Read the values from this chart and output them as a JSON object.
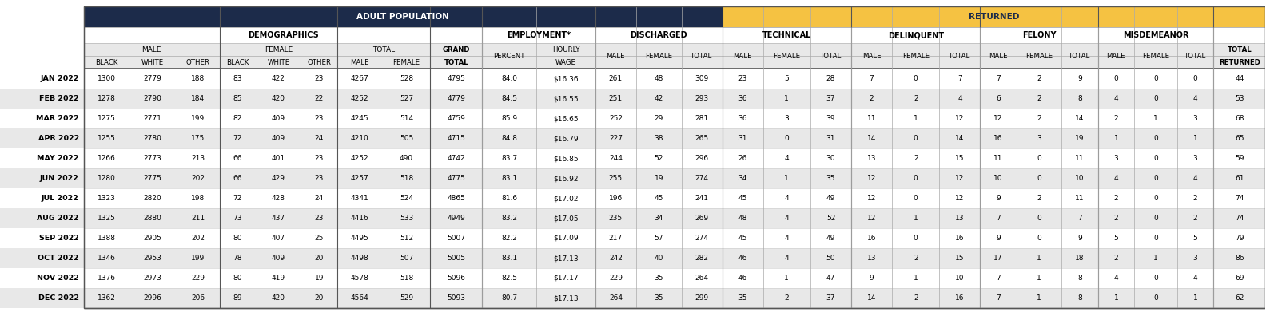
{
  "months": [
    "JAN 2022",
    "FEB 2022",
    "MAR 2022",
    "APR 2022",
    "MAY 2022",
    "JUN 2022",
    "JUL 2022",
    "AUG 2022",
    "SEP 2022",
    "OCT 2022",
    "NOV 2022",
    "DEC 2022"
  ],
  "male_black": [
    1300,
    1278,
    1275,
    1255,
    1266,
    1280,
    1323,
    1325,
    1388,
    1346,
    1376,
    1362
  ],
  "male_white": [
    2779,
    2790,
    2771,
    2780,
    2773,
    2775,
    2820,
    2880,
    2905,
    2953,
    2973,
    2996
  ],
  "male_other": [
    188,
    184,
    199,
    175,
    213,
    202,
    198,
    211,
    202,
    199,
    229,
    206
  ],
  "female_black": [
    83,
    85,
    82,
    72,
    66,
    66,
    72,
    73,
    80,
    78,
    80,
    89
  ],
  "female_white": [
    422,
    420,
    409,
    409,
    401,
    429,
    428,
    437,
    407,
    409,
    419,
    420
  ],
  "female_other": [
    23,
    22,
    23,
    24,
    23,
    23,
    24,
    23,
    25,
    20,
    19,
    20
  ],
  "total_male": [
    4267,
    4252,
    4245,
    4210,
    4252,
    4257,
    4341,
    4416,
    4495,
    4498,
    4578,
    4564
  ],
  "total_female": [
    528,
    527,
    514,
    505,
    490,
    518,
    524,
    533,
    512,
    507,
    518,
    529
  ],
  "grand_total": [
    4795,
    4779,
    4759,
    4715,
    4742,
    4775,
    4865,
    4949,
    5007,
    5005,
    5096,
    5093
  ],
  "employ_pct": [
    "84.0",
    "84.5",
    "85.9",
    "84.8",
    "83.7",
    "83.1",
    "81.6",
    "83.2",
    "82.2",
    "83.1",
    "82.5",
    "80.7"
  ],
  "hourly_wage": [
    "$16.36",
    "$16.55",
    "$16.65",
    "$16.79",
    "$16.85",
    "$16.92",
    "$17.02",
    "$17.05",
    "$17.09",
    "$17.13",
    "$17.17",
    "$17.13"
  ],
  "disc_male": [
    261,
    251,
    252,
    227,
    244,
    255,
    196,
    235,
    217,
    242,
    229,
    264
  ],
  "disc_female": [
    48,
    42,
    29,
    38,
    52,
    19,
    45,
    34,
    57,
    40,
    35,
    35
  ],
  "disc_total": [
    309,
    293,
    281,
    265,
    296,
    274,
    241,
    269,
    274,
    282,
    264,
    299
  ],
  "tech_male": [
    23,
    36,
    36,
    31,
    26,
    34,
    45,
    48,
    45,
    46,
    46,
    35
  ],
  "tech_female": [
    5,
    1,
    3,
    0,
    4,
    1,
    4,
    4,
    4,
    4,
    1,
    2
  ],
  "tech_total": [
    28,
    37,
    39,
    31,
    30,
    35,
    49,
    52,
    49,
    50,
    47,
    37
  ],
  "delinq_male": [
    7,
    2,
    11,
    14,
    13,
    12,
    12,
    12,
    16,
    13,
    9,
    14
  ],
  "delinq_female": [
    0,
    2,
    1,
    0,
    2,
    0,
    0,
    1,
    0,
    2,
    1,
    2
  ],
  "delinq_total": [
    7,
    4,
    12,
    14,
    15,
    12,
    12,
    13,
    16,
    15,
    10,
    16
  ],
  "felony_male": [
    7,
    6,
    12,
    16,
    11,
    10,
    9,
    7,
    9,
    17,
    7,
    7
  ],
  "felony_female": [
    2,
    2,
    2,
    3,
    0,
    0,
    2,
    0,
    0,
    1,
    1,
    1
  ],
  "felony_total": [
    9,
    8,
    14,
    19,
    11,
    10,
    11,
    7,
    9,
    18,
    8,
    8
  ],
  "misd_male": [
    0,
    4,
    2,
    1,
    3,
    4,
    2,
    2,
    5,
    2,
    4,
    1
  ],
  "misd_female": [
    0,
    0,
    1,
    0,
    0,
    0,
    0,
    0,
    0,
    1,
    0,
    0
  ],
  "misd_total": [
    0,
    4,
    3,
    1,
    3,
    4,
    2,
    2,
    5,
    3,
    4,
    1
  ],
  "total_returned": [
    44,
    53,
    68,
    65,
    59,
    61,
    74,
    74,
    79,
    86,
    69,
    62
  ],
  "navy": "#1c2b4a",
  "yellow": "#f5c242",
  "light_gray": "#e8e8e8",
  "mid_gray": "#d4d4d4",
  "white": "#ffffff",
  "text_dark": "#111111"
}
